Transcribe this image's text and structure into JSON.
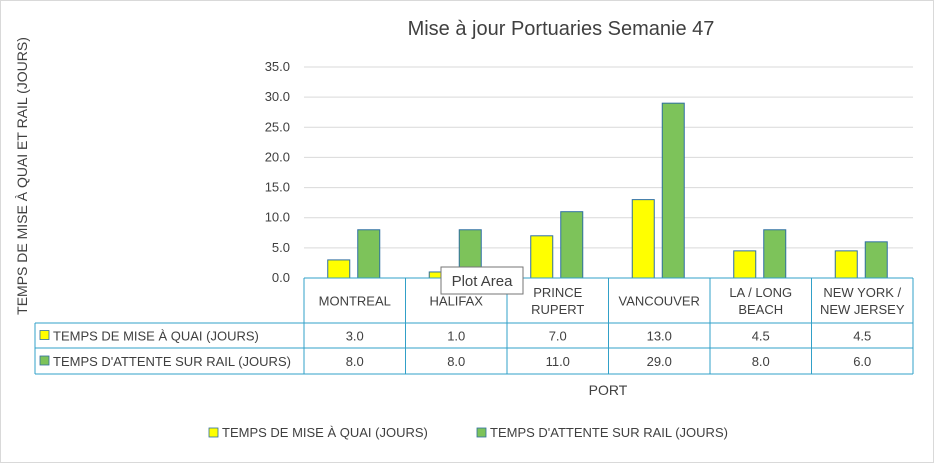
{
  "chart_data": {
    "type": "bar",
    "title": "Mise à jour Portuaries Semanie 47",
    "xlabel": "PORT",
    "ylabel": "TEMPS DE MISE À QUAI ET RAIL (JOURS)",
    "ylim": [
      0,
      35
    ],
    "yticks": [
      "0.0",
      "5.0",
      "10.0",
      "15.0",
      "20.0",
      "25.0",
      "30.0",
      "35.0"
    ],
    "grid": true,
    "legend_position": "bottom",
    "categories": [
      [
        "MONTREAL"
      ],
      [
        "HALIFAX"
      ],
      [
        "PRINCE",
        "RUPERT"
      ],
      [
        "VANCOUVER"
      ],
      [
        "LA / LONG",
        "BEACH"
      ],
      [
        "NEW YORK /",
        "NEW JERSEY"
      ]
    ],
    "series": [
      {
        "name": "TEMPS DE MISE À QUAI (JOURS)",
        "color": "#FFFF00",
        "values": [
          3.0,
          1.0,
          7.0,
          13.0,
          4.5,
          4.5
        ],
        "labels": [
          "3.0",
          "1.0",
          "7.0",
          "13.0",
          "4.5",
          "4.5"
        ]
      },
      {
        "name": "TEMPS  D'ATTENTE SUR RAIL (JOURS)",
        "color": "#7DC35A",
        "values": [
          8.0,
          8.0,
          11.0,
          29.0,
          8.0,
          6.0
        ],
        "labels": [
          "8.0",
          "8.0",
          "11.0",
          "29.0",
          "8.0",
          "6.0"
        ]
      }
    ],
    "data_table": true
  },
  "tooltip": {
    "text": "Plot Area"
  },
  "colors": {
    "bar_border": "#2F6FA0",
    "table_border": "#31A0C8",
    "gridline": "#D9D9D9",
    "text": "#404040"
  }
}
